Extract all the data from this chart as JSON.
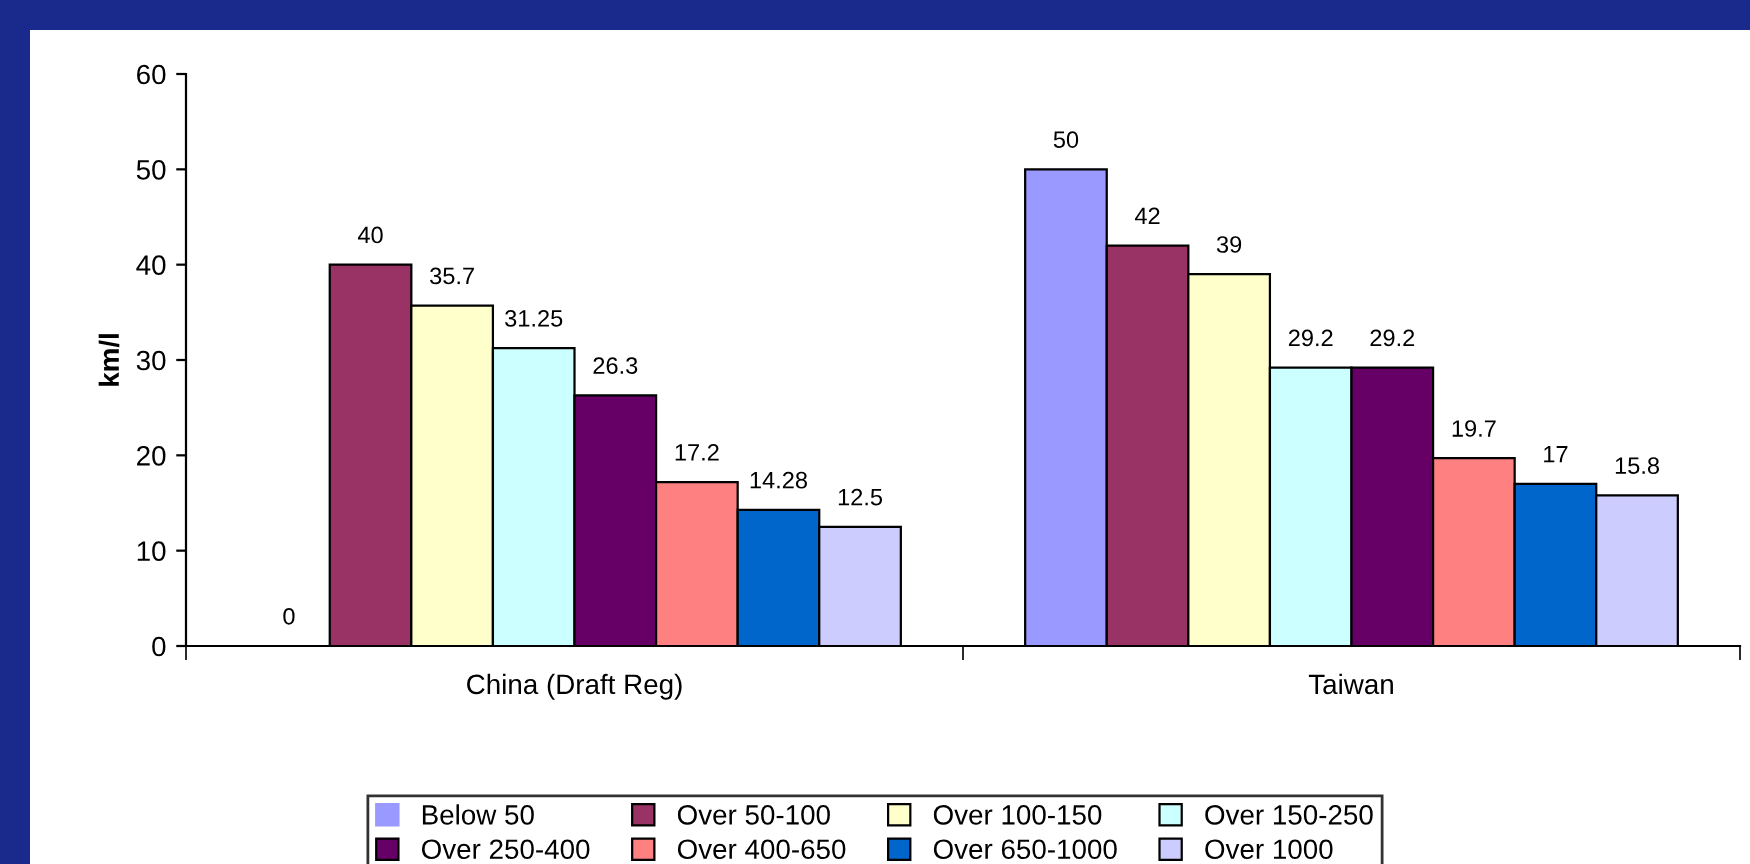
{
  "chart_data": {
    "type": "bar",
    "ylabel": "km/l",
    "categories": [
      "China (Draft Reg)",
      "Taiwan"
    ],
    "series": [
      {
        "name": "Below 50",
        "color": "#9999ff",
        "values": [
          0,
          50
        ]
      },
      {
        "name": "Over 50-100",
        "color": "#993366",
        "values": [
          40,
          42
        ]
      },
      {
        "name": "Over 100-150",
        "color": "#ffffcc",
        "values": [
          35.7,
          39
        ]
      },
      {
        "name": "Over 150-250",
        "color": "#ccffff",
        "values": [
          31.25,
          29.2
        ]
      },
      {
        "name": "Over 250-400",
        "color": "#660066",
        "values": [
          26.3,
          29.2
        ]
      },
      {
        "name": "Over 400-650",
        "color": "#ff8080",
        "values": [
          17.2,
          19.7
        ]
      },
      {
        "name": "Over 650-1000",
        "color": "#0066cc",
        "values": [
          14.28,
          17
        ]
      },
      {
        "name": "Over 1000",
        "color": "#ccccff",
        "values": [
          12.5,
          15.8
        ]
      }
    ],
    "ylim": [
      0,
      60
    ],
    "yticks": [
      0,
      10,
      20,
      30,
      40,
      50,
      60
    ],
    "data_labels": true,
    "grid": false,
    "legend": "bottom"
  }
}
